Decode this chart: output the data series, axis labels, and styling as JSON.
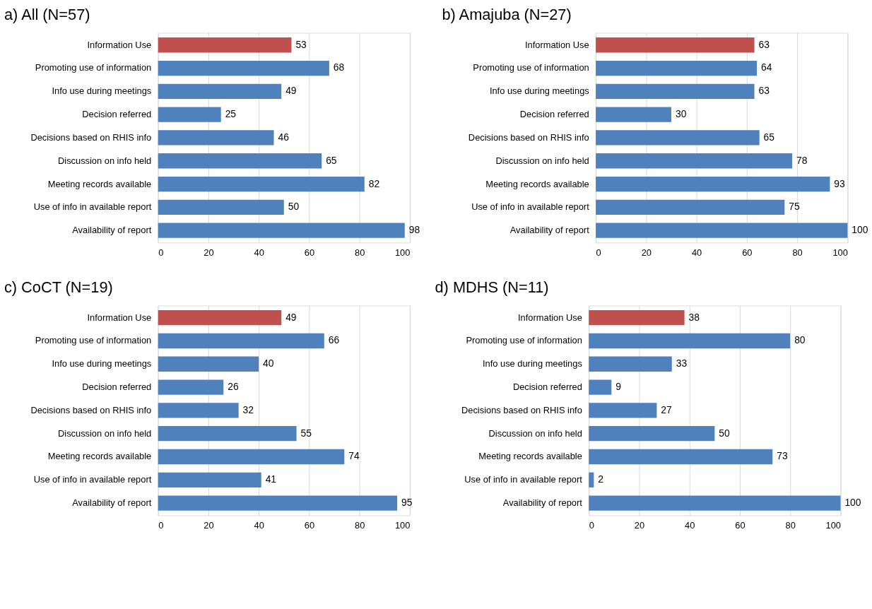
{
  "chart_data": [
    {
      "type": "bar",
      "orientation": "horizontal",
      "title": "a)  All (N=57)",
      "categories": [
        "Information Use",
        "Promoting use of information",
        "Info use during meetings",
        "Decision referred",
        "Decisions based on RHIS info",
        "Discussion on info held",
        "Meeting records available",
        "Use of info in available report",
        "Availability of report"
      ],
      "values": [
        53,
        68,
        49,
        25,
        46,
        65,
        82,
        50,
        98
      ],
      "colors": [
        "#c0504d",
        "#4f81bd",
        "#4f81bd",
        "#4f81bd",
        "#4f81bd",
        "#4f81bd",
        "#4f81bd",
        "#4f81bd",
        "#4f81bd"
      ],
      "xlim": [
        0,
        100
      ],
      "xticks": [
        0,
        20,
        40,
        60,
        80,
        100
      ],
      "grid": "x",
      "data_labels": true
    },
    {
      "type": "bar",
      "orientation": "horizontal",
      "title": "b)  Amajuba (N=27)",
      "categories": [
        "Information Use",
        "Promoting use of information",
        "Info use during meetings",
        "Decision referred",
        "Decisions based on RHIS info",
        "Discussion on info held",
        "Meeting records available",
        "Use of info in available report",
        "Availability of report"
      ],
      "values": [
        63,
        64,
        63,
        30,
        65,
        78,
        93,
        75,
        100
      ],
      "colors": [
        "#c0504d",
        "#4f81bd",
        "#4f81bd",
        "#4f81bd",
        "#4f81bd",
        "#4f81bd",
        "#4f81bd",
        "#4f81bd",
        "#4f81bd"
      ],
      "xlim": [
        0,
        100
      ],
      "xticks": [
        0,
        20,
        40,
        60,
        80,
        100
      ],
      "grid": "x",
      "data_labels": true
    },
    {
      "type": "bar",
      "orientation": "horizontal",
      "title": "c)  CoCT (N=19)",
      "categories": [
        "Information Use",
        "Promoting use of information",
        "Info use during meetings",
        "Decision referred",
        "Decisions based on RHIS info",
        "Discussion on info held",
        "Meeting records available",
        "Use of info in available report",
        "Availability of report"
      ],
      "values": [
        49,
        66,
        40,
        26,
        32,
        55,
        74,
        41,
        95
      ],
      "colors": [
        "#c0504d",
        "#4f81bd",
        "#4f81bd",
        "#4f81bd",
        "#4f81bd",
        "#4f81bd",
        "#4f81bd",
        "#4f81bd",
        "#4f81bd"
      ],
      "xlim": [
        0,
        100
      ],
      "xticks": [
        0,
        20,
        40,
        60,
        80,
        100
      ],
      "grid": "x",
      "data_labels": true
    },
    {
      "type": "bar",
      "orientation": "horizontal",
      "title": "d)  MDHS (N=11)",
      "categories": [
        "Information Use",
        "Promoting use of information",
        "Info use during meetings",
        "Decision referred",
        "Decisions based on RHIS info",
        "Discussion on info held",
        "Meeting records available",
        "Use of info in available report",
        "Availability of report"
      ],
      "values": [
        38,
        80,
        33,
        9,
        27,
        50,
        73,
        2,
        100
      ],
      "colors": [
        "#c0504d",
        "#4f81bd",
        "#4f81bd",
        "#4f81bd",
        "#4f81bd",
        "#4f81bd",
        "#4f81bd",
        "#4f81bd",
        "#4f81bd"
      ],
      "xlim": [
        0,
        100
      ],
      "xticks": [
        0,
        20,
        40,
        60,
        80,
        100
      ],
      "grid": "x",
      "data_labels": true
    }
  ]
}
